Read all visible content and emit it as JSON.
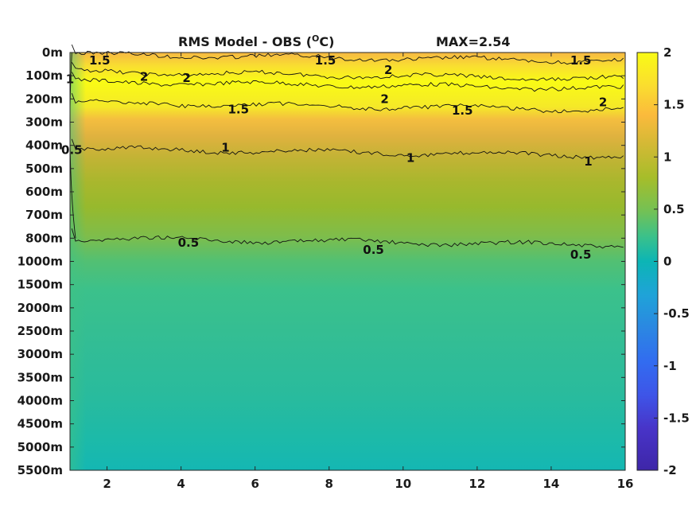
{
  "chart_data": {
    "type": "heatmap",
    "title": "RMS Model - OBS (",
    "title_degree": "O",
    "title_unit": "C)",
    "max_label": "MAX=2.54",
    "x_ticks": [
      2,
      4,
      6,
      8,
      10,
      12,
      14,
      16
    ],
    "xlim": [
      1,
      16
    ],
    "y_ticks": [
      "0m",
      "100m",
      "200m",
      "300m",
      "400m",
      "500m",
      "600m",
      "700m",
      "800m",
      "1000m",
      "1500m",
      "2000m",
      "2500m",
      "3000m",
      "3500m",
      "4000m",
      "4500m",
      "5000m",
      "5500m"
    ],
    "colorbar_ticks": [
      "2",
      "1.5",
      "1",
      "0.5",
      "0",
      "-0.5",
      "-1",
      "-1.5",
      "-2"
    ],
    "clim": [
      -2,
      2
    ],
    "colormap": "parula",
    "contour_levels": [
      0.5,
      1,
      1.5,
      2
    ],
    "profile": {
      "depth_index": [
        0,
        0.5,
        1,
        1.5,
        2,
        3,
        4,
        5,
        6,
        7,
        8,
        9,
        10,
        12,
        14,
        16,
        18
      ],
      "value": [
        1.45,
        1.8,
        2.1,
        1.9,
        1.55,
        1.25,
        1.02,
        0.88,
        0.75,
        0.64,
        0.5,
        0.4,
        0.33,
        0.32,
        0.3,
        0.25,
        0.15
      ]
    },
    "contour_labels": [
      {
        "text": "1.5",
        "x": 1.8,
        "depth_index": 0.35
      },
      {
        "text": "1.5",
        "x": 7.9,
        "depth_index": 0.35
      },
      {
        "text": "1.5",
        "x": 14.8,
        "depth_index": 0.35
      },
      {
        "text": "2",
        "x": 3.0,
        "depth_index": 1.05
      },
      {
        "text": "2",
        "x": 4.15,
        "depth_index": 1.1
      },
      {
        "text": "2",
        "x": 9.6,
        "depth_index": 0.75
      },
      {
        "text": "2",
        "x": 9.5,
        "depth_index": 2.0
      },
      {
        "text": "2",
        "x": 15.4,
        "depth_index": 2.15
      },
      {
        "text": "1.5",
        "x": 5.55,
        "depth_index": 2.45
      },
      {
        "text": "1.5",
        "x": 11.6,
        "depth_index": 2.5
      },
      {
        "text": "1",
        "x": 1.0,
        "depth_index": 1.15
      },
      {
        "text": "1",
        "x": 5.2,
        "depth_index": 4.1
      },
      {
        "text": "1",
        "x": 10.2,
        "depth_index": 4.55
      },
      {
        "text": "1",
        "x": 15.0,
        "depth_index": 4.7
      },
      {
        "text": "0.5",
        "x": 1.05,
        "depth_index": 4.2
      },
      {
        "text": "0.5",
        "x": 4.2,
        "depth_index": 8.2
      },
      {
        "text": "0.5",
        "x": 9.2,
        "depth_index": 8.5
      },
      {
        "text": "0.5",
        "x": 14.8,
        "depth_index": 8.7
      }
    ]
  }
}
